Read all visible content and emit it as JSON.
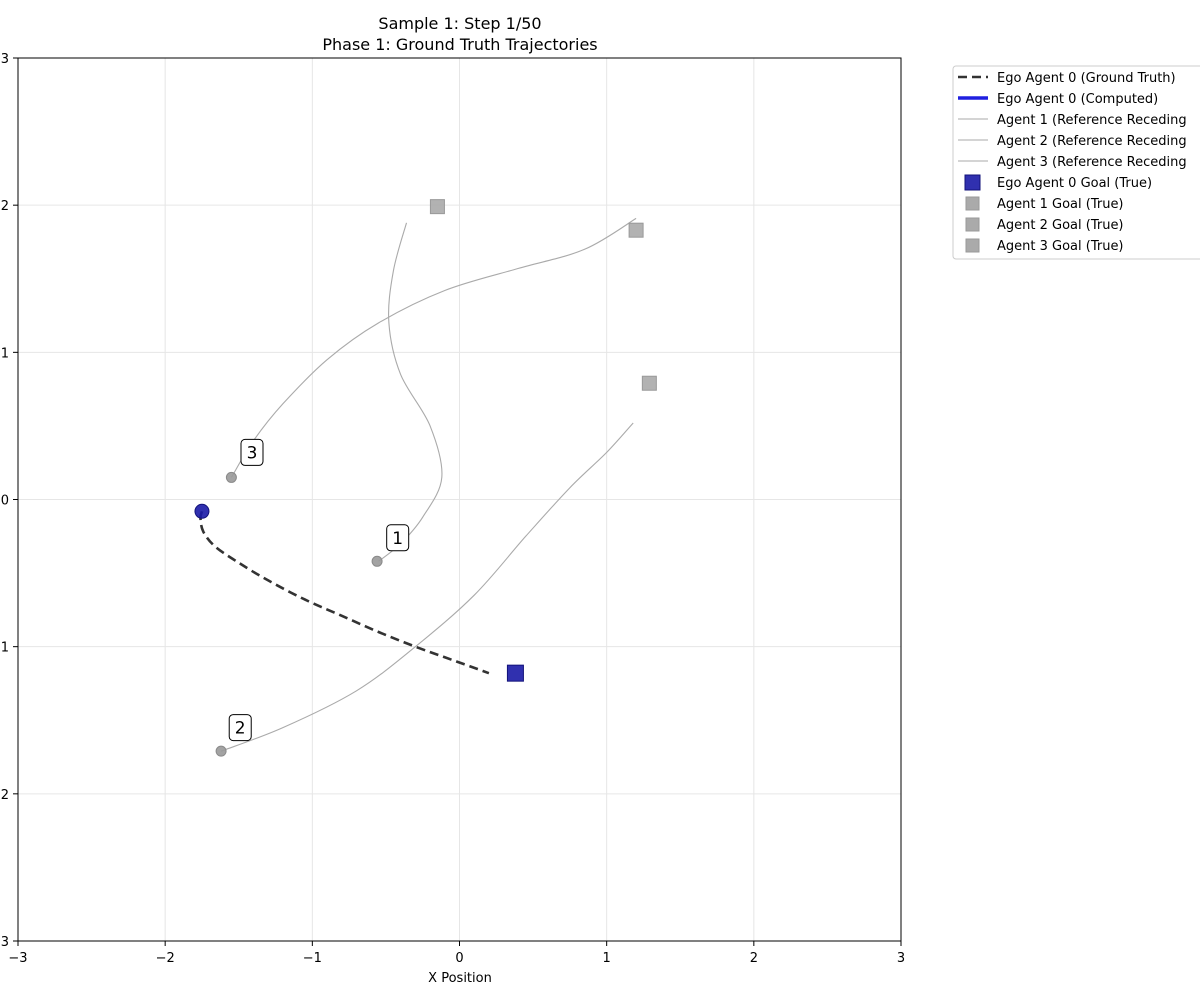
{
  "chart_data": {
    "type": "line",
    "title_lines": [
      "Sample 1: Step 1/50",
      "Phase 1: Ground Truth Trajectories"
    ],
    "xlabel": "X Position",
    "ylabel": "",
    "xlim": [
      -3,
      3
    ],
    "ylim": [
      -3,
      3
    ],
    "grid": true,
    "x_ticks": [
      -3,
      -2,
      -1,
      0,
      1,
      2,
      3
    ],
    "x_tick_labels": [
      "−3",
      "−2",
      "−1",
      "0",
      "1",
      "2",
      "3"
    ],
    "y_ticks": [
      3,
      2,
      1,
      0,
      -1,
      -2,
      -3
    ],
    "y_tick_labels": [
      "3",
      "2",
      "1",
      "0",
      "1",
      "2",
      "3"
    ],
    "legend_position": "outside-right",
    "colors": {
      "ego": "#1a1aa6",
      "ego_computed": "#2020e0",
      "ground_truth": "#333333",
      "reference": "#aaaaaa",
      "other_marker": "#999999",
      "other_goal": "#aaaaaa"
    },
    "series": [
      {
        "name": "Ego Agent 0 (Ground Truth)",
        "style": "dashed",
        "points": [
          [
            -1.75,
            -0.08
          ],
          [
            -1.76,
            -0.13
          ],
          [
            -1.74,
            -0.22
          ],
          [
            -1.66,
            -0.32
          ],
          [
            -1.5,
            -0.43
          ],
          [
            -1.3,
            -0.55
          ],
          [
            -1.05,
            -0.68
          ],
          [
            -0.8,
            -0.79
          ],
          [
            -0.55,
            -0.9
          ],
          [
            -0.3,
            -1.0
          ],
          [
            -0.05,
            -1.09
          ],
          [
            0.2,
            -1.18
          ]
        ]
      },
      {
        "name": "Ego Agent 0 (Computed)",
        "style": "solid-thick",
        "points": []
      },
      {
        "name": "Agent 1 (Reference Receding",
        "style": "solid-thin",
        "points": [
          [
            -0.55,
            -0.42
          ],
          [
            -0.4,
            -0.3
          ],
          [
            -0.25,
            -0.12
          ],
          [
            -0.12,
            0.15
          ],
          [
            -0.2,
            0.5
          ],
          [
            -0.4,
            0.85
          ],
          [
            -0.48,
            1.2
          ],
          [
            -0.45,
            1.55
          ],
          [
            -0.36,
            1.88
          ]
        ]
      },
      {
        "name": "Agent 2 (Reference Receding",
        "style": "solid-thin",
        "points": [
          [
            -1.62,
            -1.71
          ],
          [
            -1.2,
            -1.55
          ],
          [
            -0.7,
            -1.3
          ],
          [
            -0.3,
            -1.0
          ],
          [
            0.1,
            -0.65
          ],
          [
            0.45,
            -0.25
          ],
          [
            0.75,
            0.08
          ],
          [
            1.0,
            0.32
          ],
          [
            1.18,
            0.52
          ]
        ]
      },
      {
        "name": "Agent 3 (Reference Receding",
        "style": "solid-thin",
        "points": [
          [
            -1.55,
            0.15
          ],
          [
            -1.4,
            0.4
          ],
          [
            -1.2,
            0.65
          ],
          [
            -0.9,
            0.95
          ],
          [
            -0.55,
            1.2
          ],
          [
            -0.1,
            1.42
          ],
          [
            0.4,
            1.57
          ],
          [
            0.85,
            1.7
          ],
          [
            1.2,
            1.91
          ]
        ]
      }
    ],
    "current_positions": [
      {
        "agent": "Ego Agent 0",
        "x": -1.75,
        "y": -0.08
      },
      {
        "agent": "1",
        "x": -0.56,
        "y": -0.42
      },
      {
        "agent": "2",
        "x": -1.62,
        "y": -1.71
      },
      {
        "agent": "3",
        "x": -1.55,
        "y": 0.15
      }
    ],
    "goals": [
      {
        "name": "Ego Agent 0 Goal (True)",
        "x": 0.38,
        "y": -1.18
      },
      {
        "name": "Agent 1 Goal (True)",
        "x": -0.15,
        "y": 1.99
      },
      {
        "name": "Agent 2 Goal (True)",
        "x": 1.29,
        "y": 0.79
      },
      {
        "name": "Agent 3 Goal (True)",
        "x": 1.2,
        "y": 1.83
      }
    ],
    "agent_labels": [
      {
        "text": "1",
        "x": -0.42,
        "y": -0.26
      },
      {
        "text": "2",
        "x": -1.49,
        "y": -1.55
      },
      {
        "text": "3",
        "x": -1.41,
        "y": 0.32
      }
    ],
    "legend_entries": [
      {
        "label": "Ego Agent 0 (Ground Truth)",
        "kind": "dashed"
      },
      {
        "label": "Ego Agent 0 (Computed)",
        "kind": "thick"
      },
      {
        "label": "Agent 1 (Reference Receding",
        "kind": "thin"
      },
      {
        "label": "Agent 2 (Reference Receding",
        "kind": "thin"
      },
      {
        "label": "Agent 3 (Reference Receding",
        "kind": "thin"
      },
      {
        "label": "Ego Agent 0 Goal (True)",
        "kind": "ego-square"
      },
      {
        "label": "Agent 1 Goal (True)",
        "kind": "gray-square"
      },
      {
        "label": "Agent 2 Goal (True)",
        "kind": "gray-square"
      },
      {
        "label": "Agent 3 Goal (True)",
        "kind": "gray-square"
      }
    ]
  }
}
